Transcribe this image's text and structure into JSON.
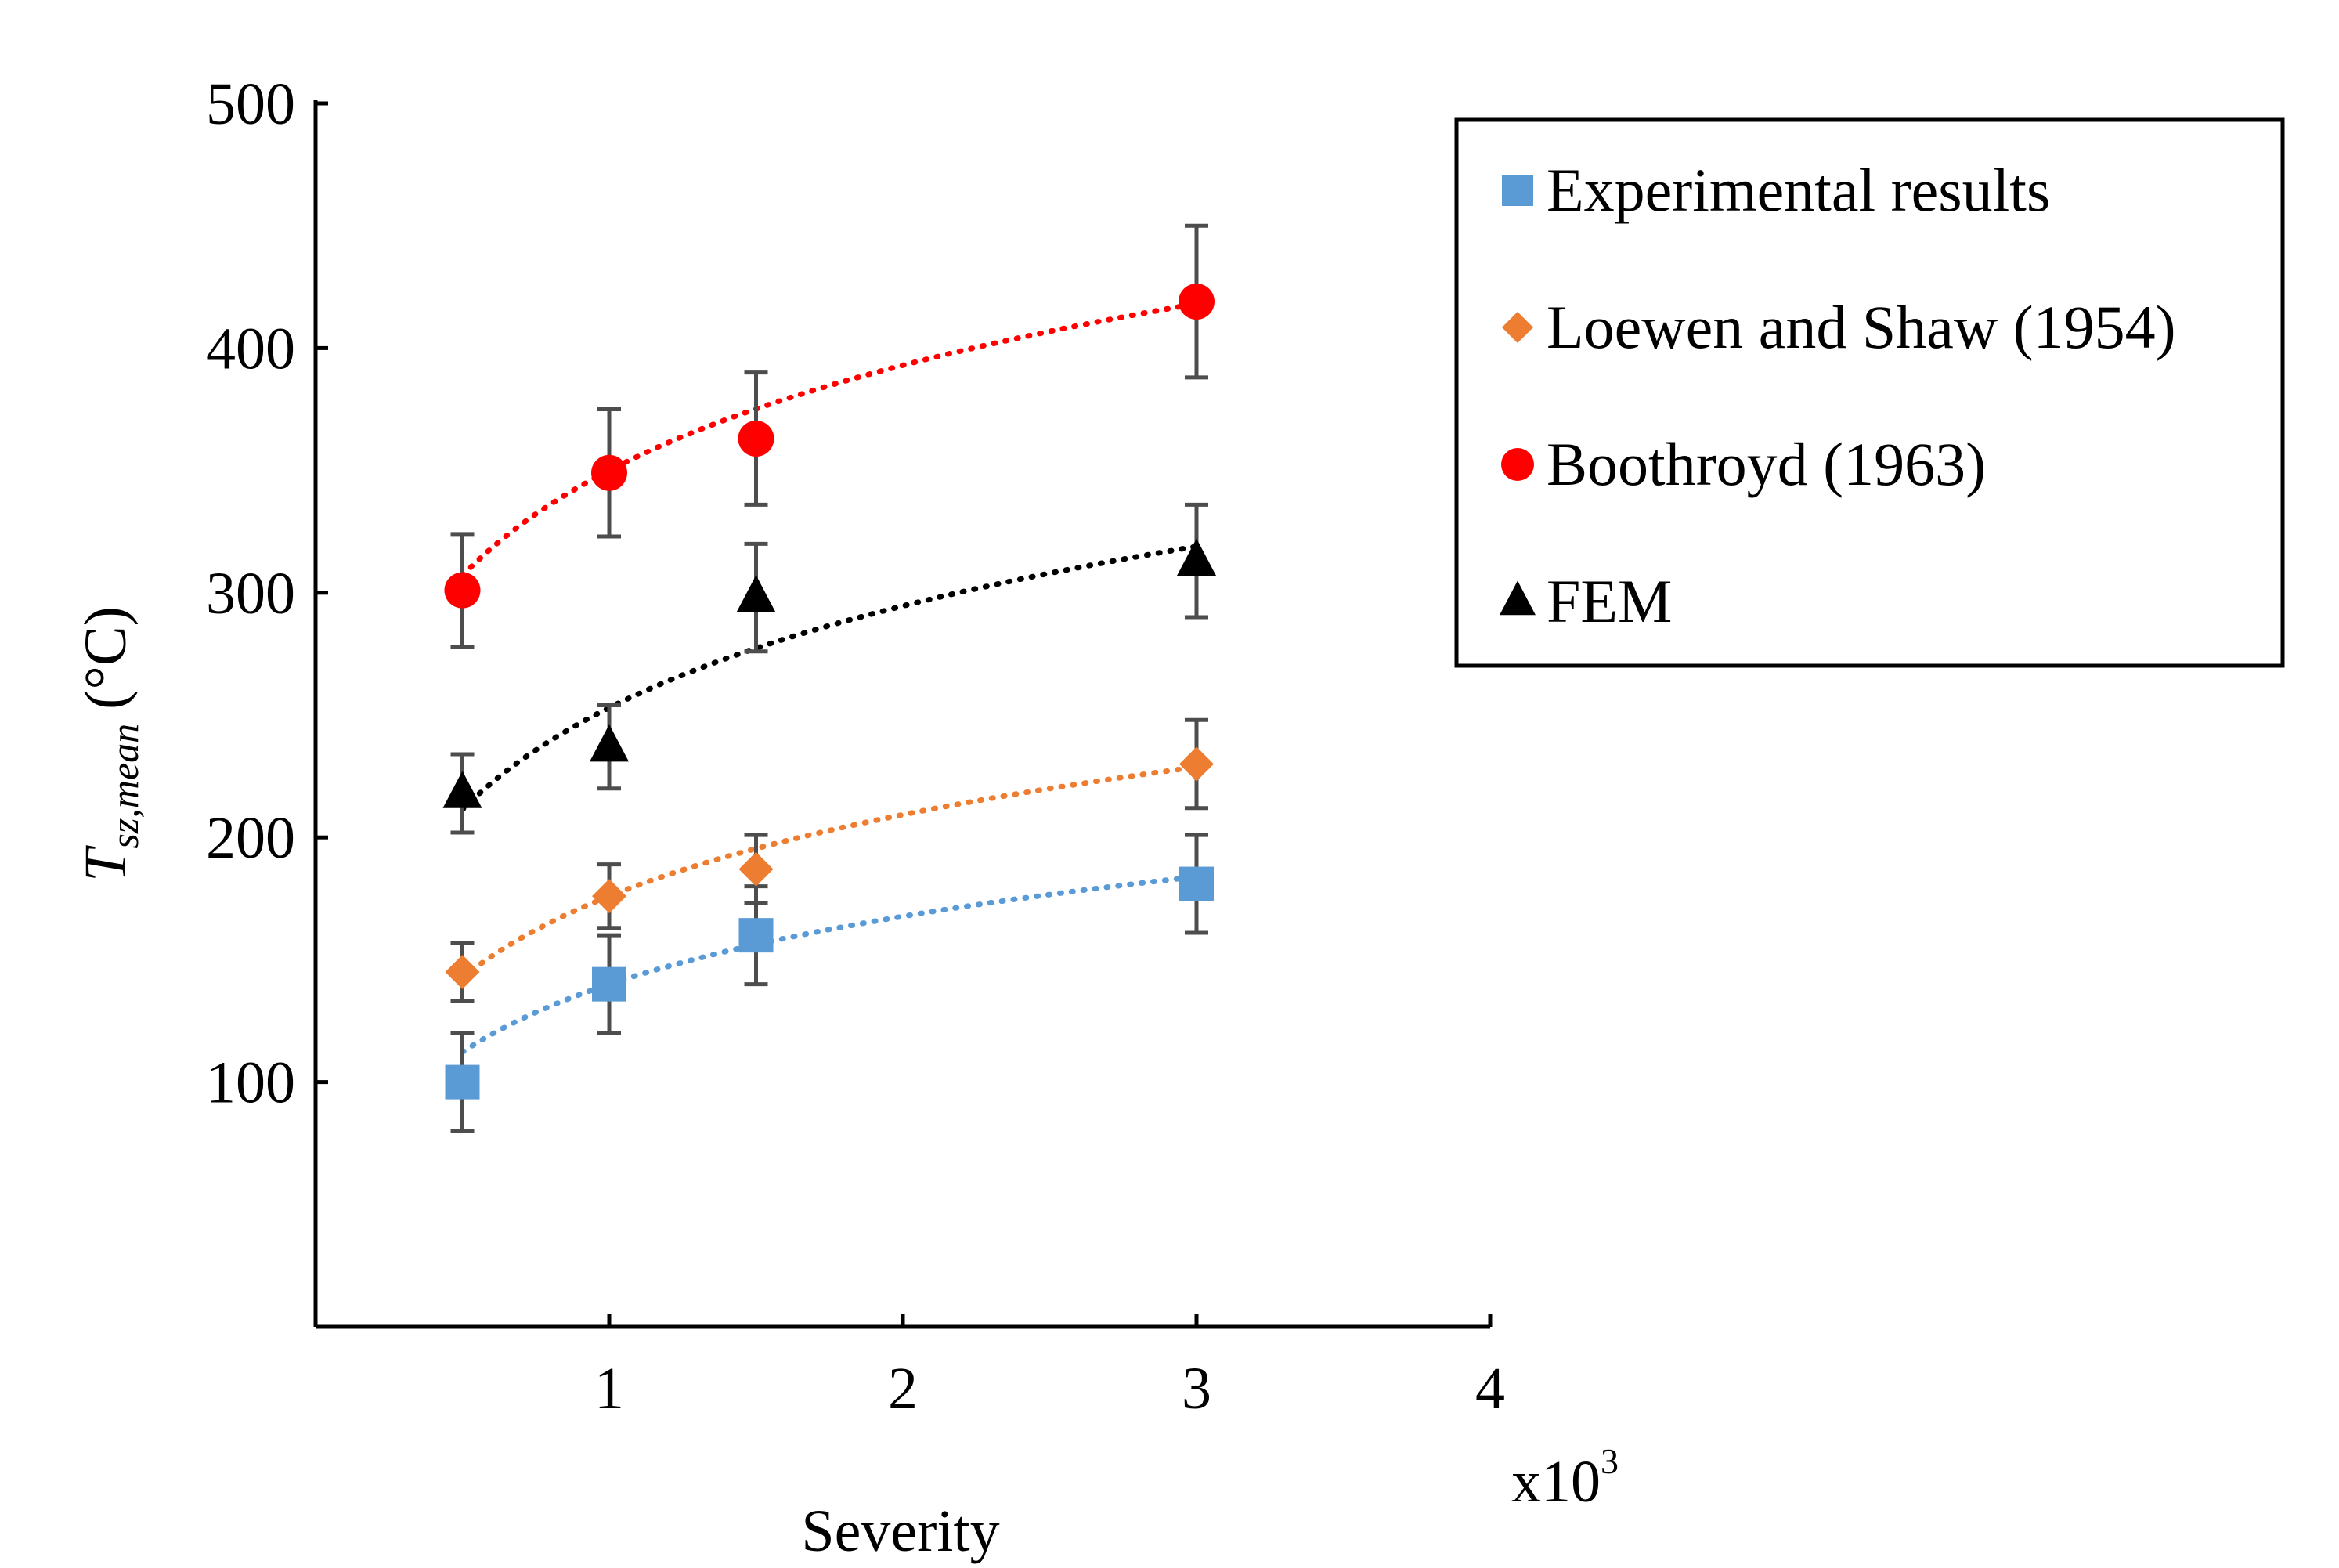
{
  "chart_data": {
    "type": "scatter",
    "title": "",
    "xlabel": "Severity",
    "x_multiplier_label": "x10",
    "x_multiplier_exponent": "3",
    "ylabel_main": "T",
    "ylabel_sub": "sz,mean",
    "ylabel_unit": "(°C)",
    "xlim": [
      0,
      4
    ],
    "ylim": [
      0,
      500
    ],
    "x_ticks": [
      1,
      2,
      3,
      4
    ],
    "y_ticks": [
      100,
      200,
      300,
      400,
      500
    ],
    "x": [
      0.5,
      1,
      1.5,
      3
    ],
    "series": [
      {
        "name": "Experimental results",
        "marker": "square",
        "color": "#5b9bd5",
        "values": [
          100,
          140,
          160,
          181
        ],
        "errors": [
          20,
          20,
          20,
          20
        ],
        "trendline": {
          "type": "logarithmic",
          "a": 140,
          "b": 40
        }
      },
      {
        "name": "Loewen and Shaw (1954)",
        "marker": "diamond",
        "color": "#ed7d31",
        "values": [
          145,
          176,
          187,
          230
        ],
        "errors": [
          12,
          13,
          14,
          18
        ],
        "trendline": {
          "type": "logarithmic",
          "a": 176,
          "b": 48
        }
      },
      {
        "name": "Boothroyd (1963)",
        "marker": "circle",
        "color": "#ff0000",
        "values": [
          301,
          349,
          363,
          419
        ],
        "errors": [
          23,
          26,
          27,
          31
        ],
        "trendline": {
          "type": "logarithmic",
          "a": 350,
          "b": 62
        }
      },
      {
        "name": "FEM",
        "marker": "triangle",
        "color": "#000000",
        "values": [
          218,
          237,
          298,
          313
        ],
        "errors": [
          16,
          17,
          22,
          23
        ],
        "trendline": {
          "type": "logarithmic",
          "a": 253,
          "b": 60
        }
      }
    ],
    "legend_position": "top-right"
  }
}
